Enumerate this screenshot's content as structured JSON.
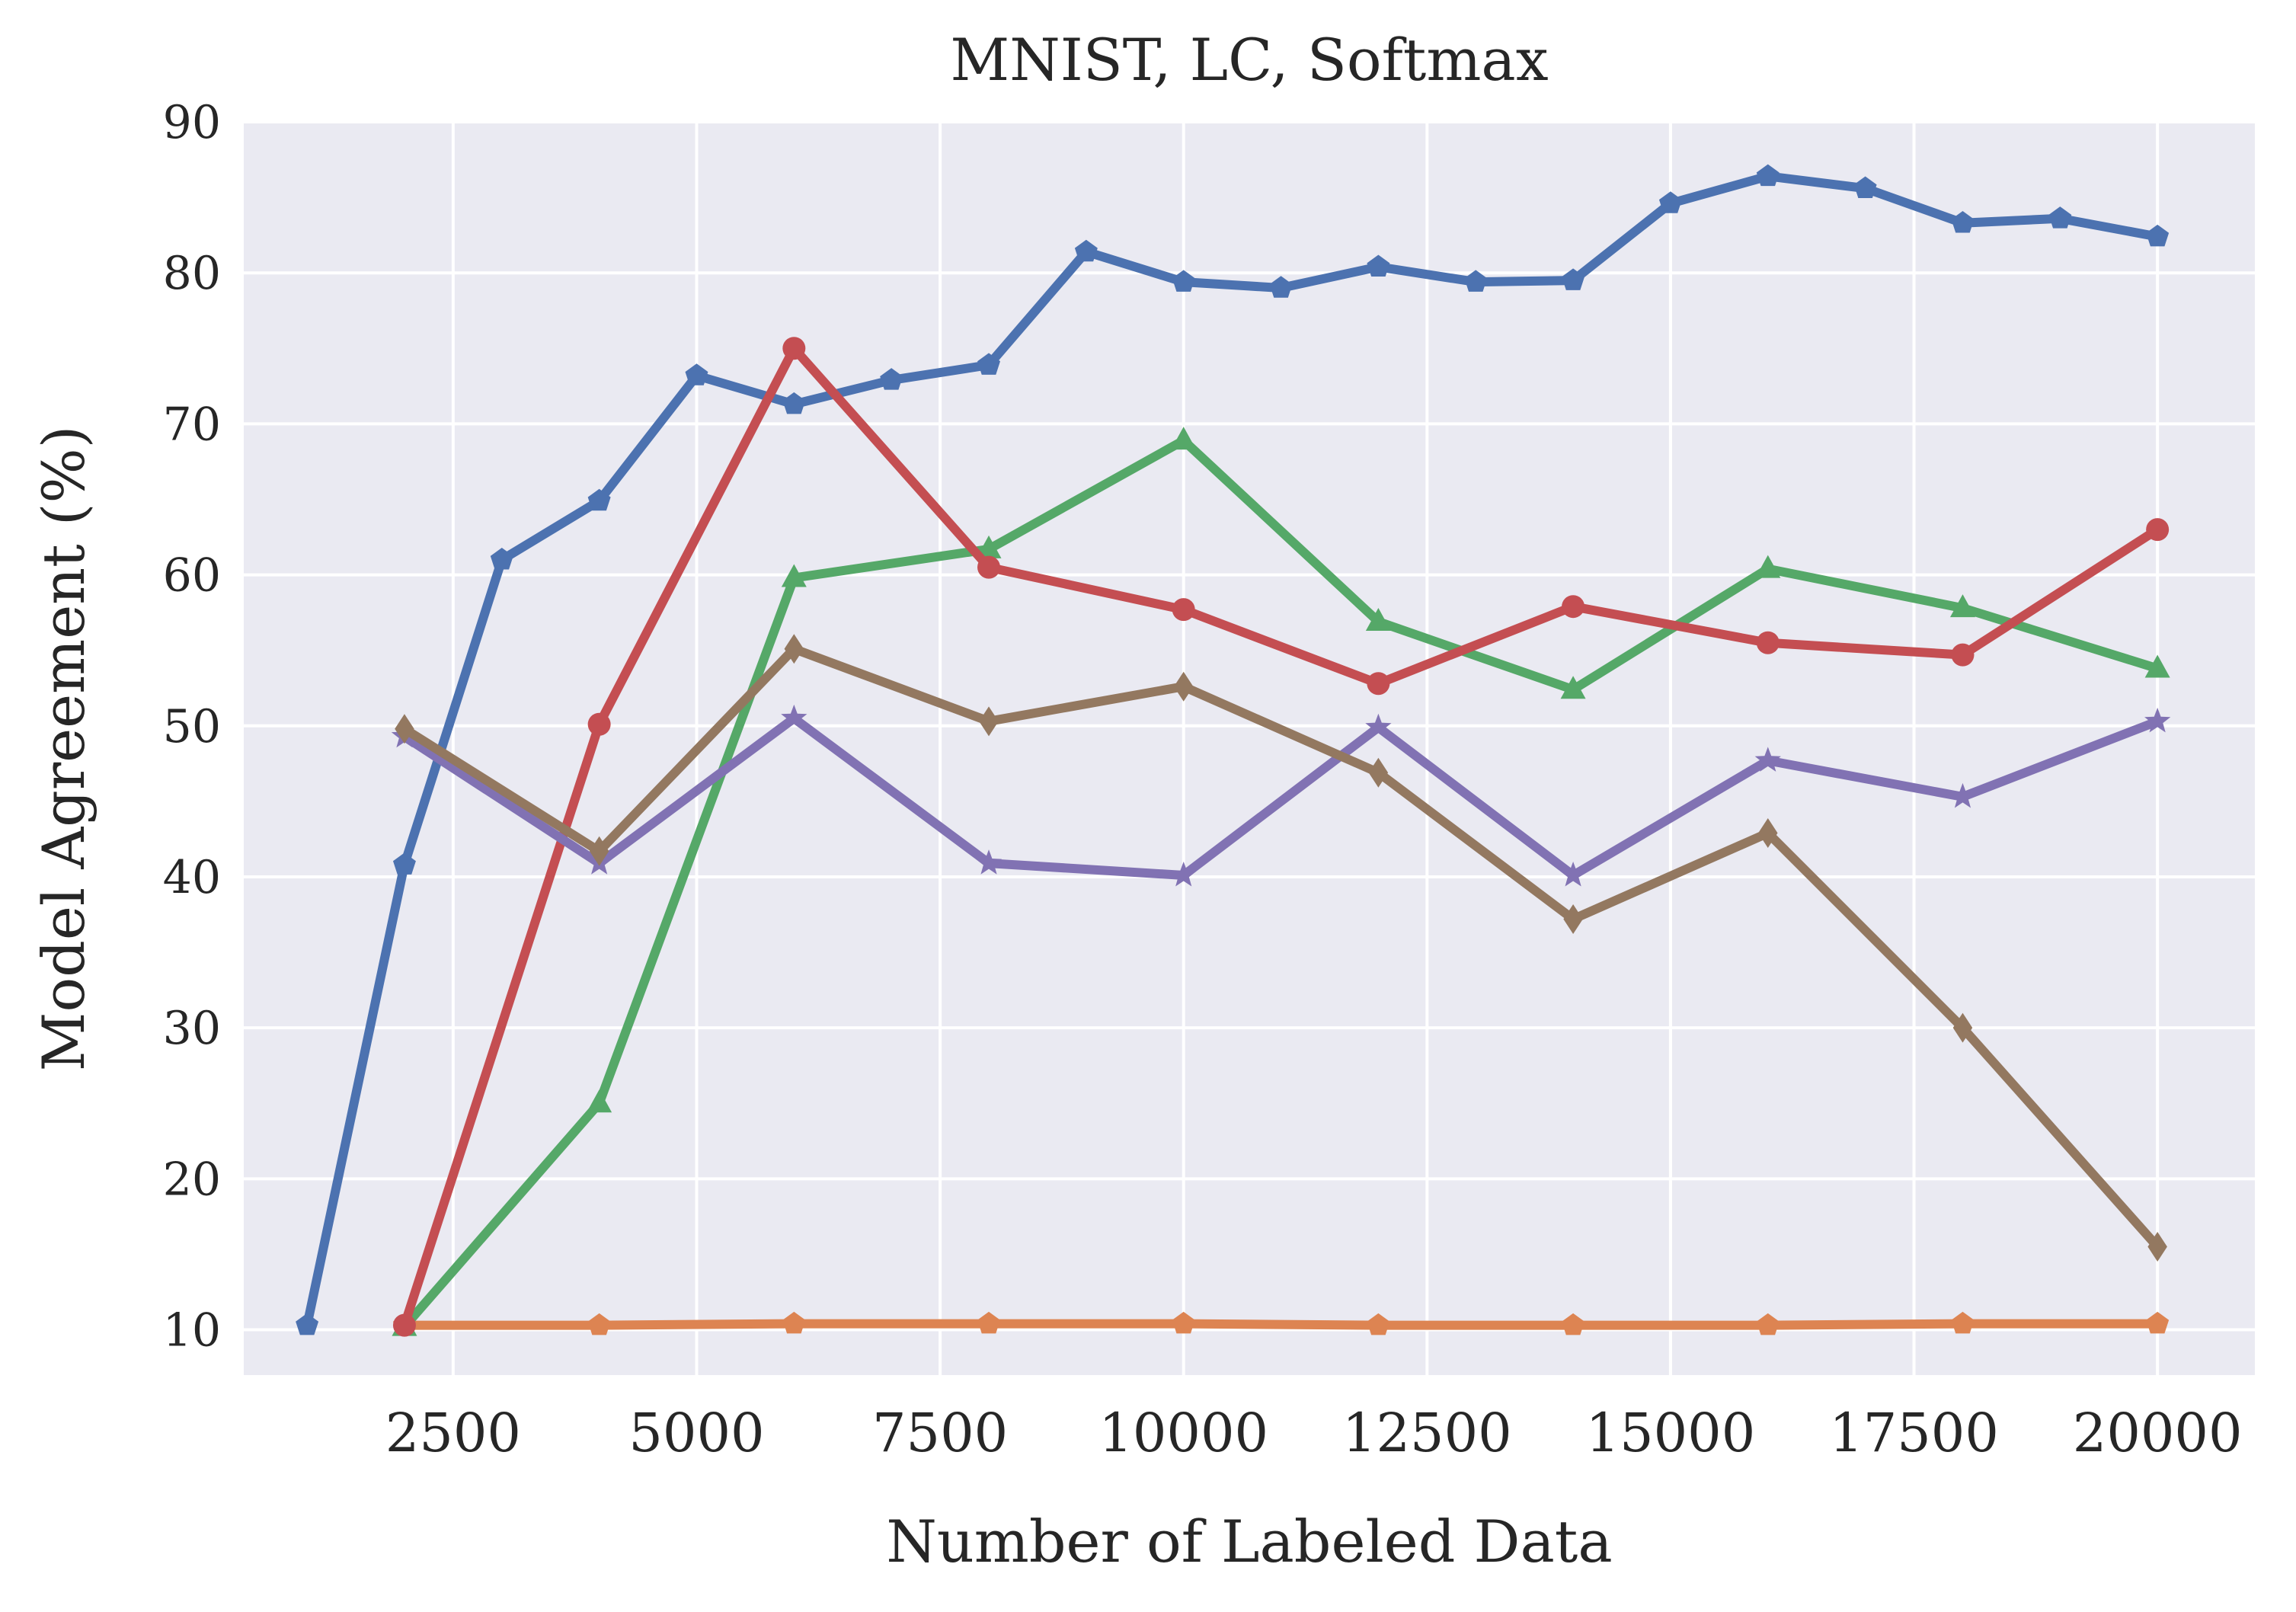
{
  "chart_data": {
    "type": "line",
    "title": "MNIST, LC, Softmax",
    "xlabel": "Number of Labeled Data",
    "ylabel": "Model Agreement (%)",
    "xlim": [
      350,
      21000
    ],
    "ylim": [
      7,
      90
    ],
    "xticks": [
      2500,
      5000,
      7500,
      10000,
      12500,
      15000,
      17500,
      20000
    ],
    "yticks": [
      10,
      20,
      30,
      40,
      50,
      60,
      70,
      80,
      90
    ],
    "grid": true,
    "background": "#eaeaf2",
    "gridColor": "#ffffff",
    "series": [
      {
        "color": "#4c72b0",
        "marker": "pentagon",
        "x": [
          1000,
          2000,
          3000,
          4000,
          5000,
          6000,
          7000,
          8000,
          9000,
          10000,
          11000,
          12000,
          13000,
          14000,
          15000,
          16000,
          17000,
          18000,
          19000,
          20000
        ],
        "y": [
          10.3,
          40.8,
          61.0,
          64.9,
          73.2,
          71.3,
          72.9,
          73.9,
          81.4,
          79.4,
          79.0,
          80.4,
          79.4,
          79.5,
          84.6,
          86.4,
          85.6,
          83.3,
          83.6,
          82.4
        ]
      },
      {
        "color": "#dd8452",
        "marker": "pentagon",
        "x": [
          2000,
          4000,
          6000,
          8000,
          10000,
          12000,
          14000,
          16000,
          18000,
          20000
        ],
        "y": [
          10.3,
          10.3,
          10.4,
          10.4,
          10.4,
          10.3,
          10.3,
          10.3,
          10.4,
          10.4
        ]
      },
      {
        "color": "#55a868",
        "marker": "triangle",
        "x": [
          2000,
          4000,
          6000,
          8000,
          10000,
          12000,
          14000,
          16000,
          18000,
          20000
        ],
        "y": [
          10.2,
          25.0,
          59.8,
          61.7,
          68.9,
          56.9,
          52.4,
          60.4,
          57.8,
          53.8
        ]
      },
      {
        "color": "#c44e52",
        "marker": "circle",
        "x": [
          2000,
          4000,
          6000,
          8000,
          10000,
          12000,
          14000,
          16000,
          18000,
          20000
        ],
        "y": [
          10.3,
          50.1,
          75.0,
          60.5,
          57.7,
          52.8,
          57.9,
          55.5,
          54.7,
          63.0
        ]
      },
      {
        "color": "#8172b3",
        "marker": "star",
        "x": [
          2000,
          4000,
          6000,
          8000,
          10000,
          12000,
          14000,
          16000,
          18000,
          20000
        ],
        "y": [
          49.3,
          40.9,
          50.5,
          40.9,
          40.1,
          49.9,
          40.1,
          47.7,
          45.3,
          50.3
        ]
      },
      {
        "color": "#937860",
        "marker": "diamond",
        "x": [
          2000,
          4000,
          6000,
          8000,
          10000,
          12000,
          14000,
          16000,
          18000,
          20000
        ],
        "y": [
          49.8,
          41.7,
          55.1,
          50.3,
          52.6,
          46.9,
          37.2,
          42.9,
          30.0,
          15.5
        ]
      }
    ]
  }
}
